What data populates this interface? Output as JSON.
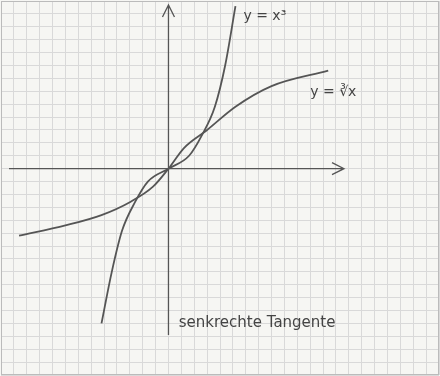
{
  "chart_data": {
    "type": "line",
    "series": [
      {
        "name": "y = x³",
        "color": "#555555",
        "x": [
          -2.6,
          -2.2,
          -1.8,
          -1.3,
          -0.8,
          0,
          0.8,
          1.3,
          1.8,
          2.2,
          2.6
        ],
        "values": [
          -6.0,
          -4.0,
          -2.4,
          -1.3,
          -0.5,
          0,
          0.5,
          1.3,
          2.4,
          4.0,
          6.3
        ]
      },
      {
        "name": "y = ∛x",
        "color": "#555555",
        "x": [
          -5.8,
          -4,
          -2.6,
          -1.5,
          -0.6,
          0,
          0.6,
          1.5,
          2.6,
          4,
          6.2
        ],
        "values": [
          -2.6,
          -2.2,
          -1.8,
          -1.3,
          -0.7,
          0,
          0.8,
          1.5,
          2.4,
          3.2,
          3.8
        ]
      }
    ],
    "annotations": [
      {
        "text": "senkrechte Tangente",
        "x": 0.4,
        "y": -6.0
      }
    ],
    "xlim": [
      -6.5,
      10.5
    ],
    "xticks": [
      -6.5,
      -6,
      -5.5,
      -5,
      -4.5,
      -4,
      -3.5,
      -3,
      -2.5,
      -2,
      -1.5,
      -1,
      -0.5,
      0,
      0.5,
      1,
      1.5,
      2,
      2.5,
      3,
      3.5,
      4,
      4.5,
      5,
      5.5,
      6,
      6.5,
      7,
      7.5,
      8,
      8.5,
      9,
      9.5,
      10,
      10.5
    ],
    "ylim": [
      -8,
      6.5
    ],
    "yticks": [
      -8,
      -7.5,
      -7,
      -6.5,
      -6,
      -5.5,
      -5,
      -4.5,
      -4,
      -3.5,
      -3,
      -2.5,
      -2,
      -1.5,
      -1,
      -0.5,
      0,
      0.5,
      1,
      1.5,
      2,
      2.5,
      3,
      3.5,
      4,
      4.5,
      5,
      5.5,
      6,
      6.5
    ],
    "grid": true,
    "tick_labels": false
  }
}
